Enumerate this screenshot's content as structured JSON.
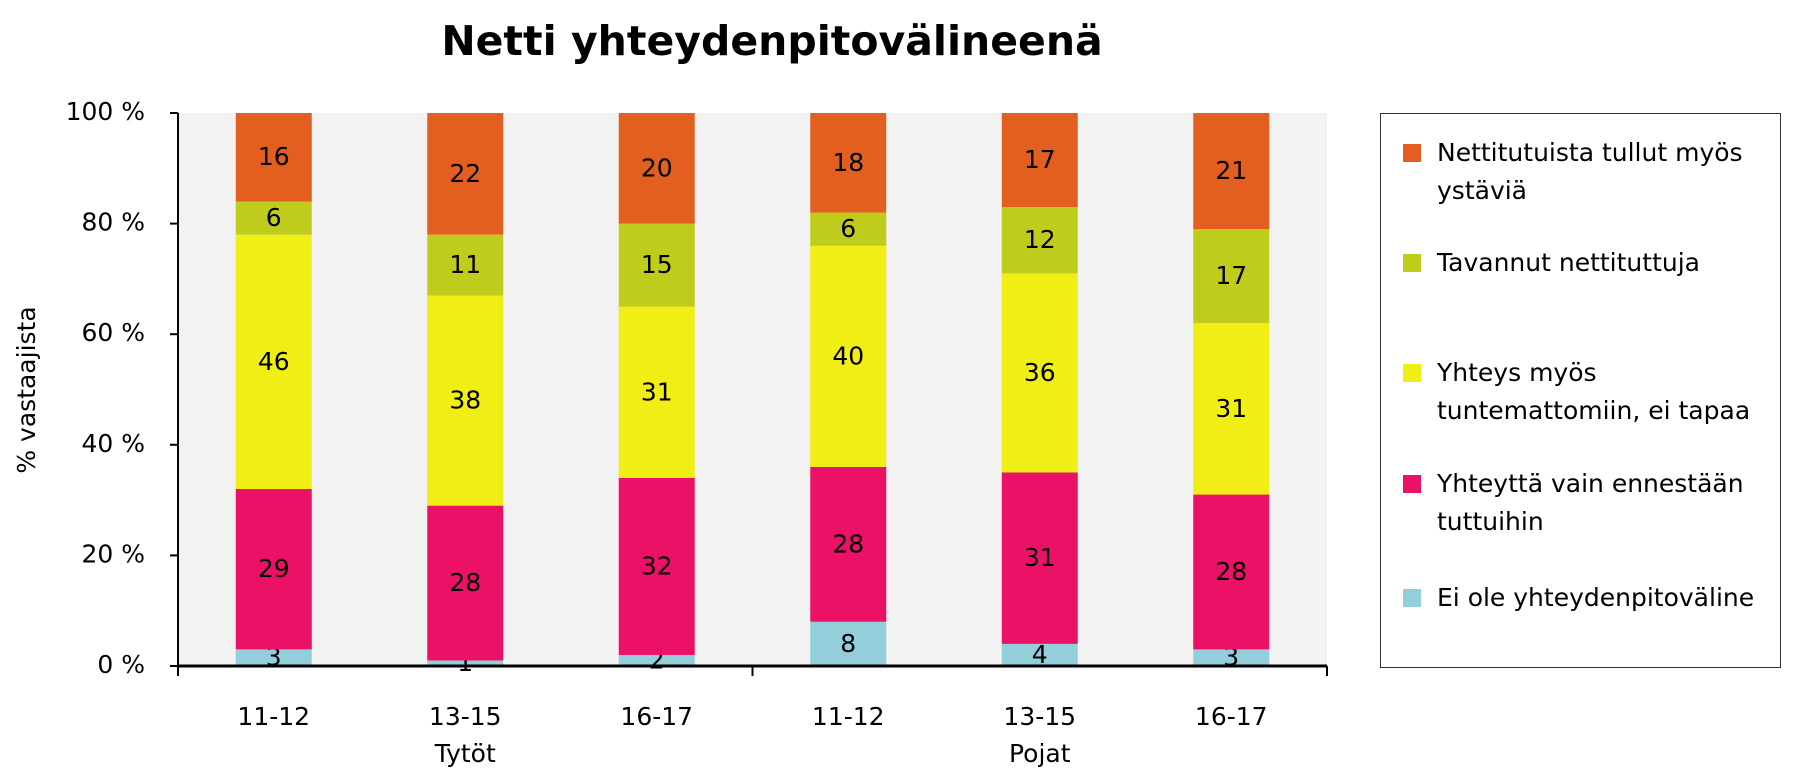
{
  "chart_data": {
    "type": "stacked_bar",
    "title": "Netti yhteydenpitovälineenä",
    "ylabel": "% vastaajista",
    "categories": [
      "11-12",
      "13-15",
      "16-17",
      "11-12",
      "13-15",
      "16-17"
    ],
    "groups": [
      "Tytöt",
      "Pojat"
    ],
    "series": [
      {
        "name": "Ei ole yhteydenpitoväline",
        "color": "#93cfdb",
        "values": [
          3,
          1,
          2,
          8,
          4,
          3
        ]
      },
      {
        "name": "Yhteyttä vain ennestään tuttuihin",
        "color": "#ea1166",
        "values": [
          29,
          28,
          32,
          28,
          31,
          28
        ]
      },
      {
        "name": "Yhteys myös tuntemattomiin, ei tapaa",
        "color": "#f0ee14",
        "values": [
          46,
          38,
          31,
          40,
          36,
          31
        ]
      },
      {
        "name": "Tavannut nettituttuja",
        "color": "#c0cc1c",
        "values": [
          6,
          11,
          15,
          6,
          12,
          17
        ]
      },
      {
        "name": "Nettitutuista tullut myös ystäviä",
        "color": "#e35f1f",
        "values": [
          16,
          22,
          20,
          18,
          17,
          21
        ]
      }
    ],
    "ylim": [
      0,
      100
    ],
    "yticks": [
      {
        "value": 0,
        "label": "0 %"
      },
      {
        "value": 20,
        "label": "20 %"
      },
      {
        "value": 40,
        "label": "40 %"
      },
      {
        "value": 60,
        "label": "60 %"
      },
      {
        "value": 80,
        "label": "80 %"
      },
      {
        "value": 100,
        "label": "100 %"
      }
    ],
    "legend": "right"
  }
}
